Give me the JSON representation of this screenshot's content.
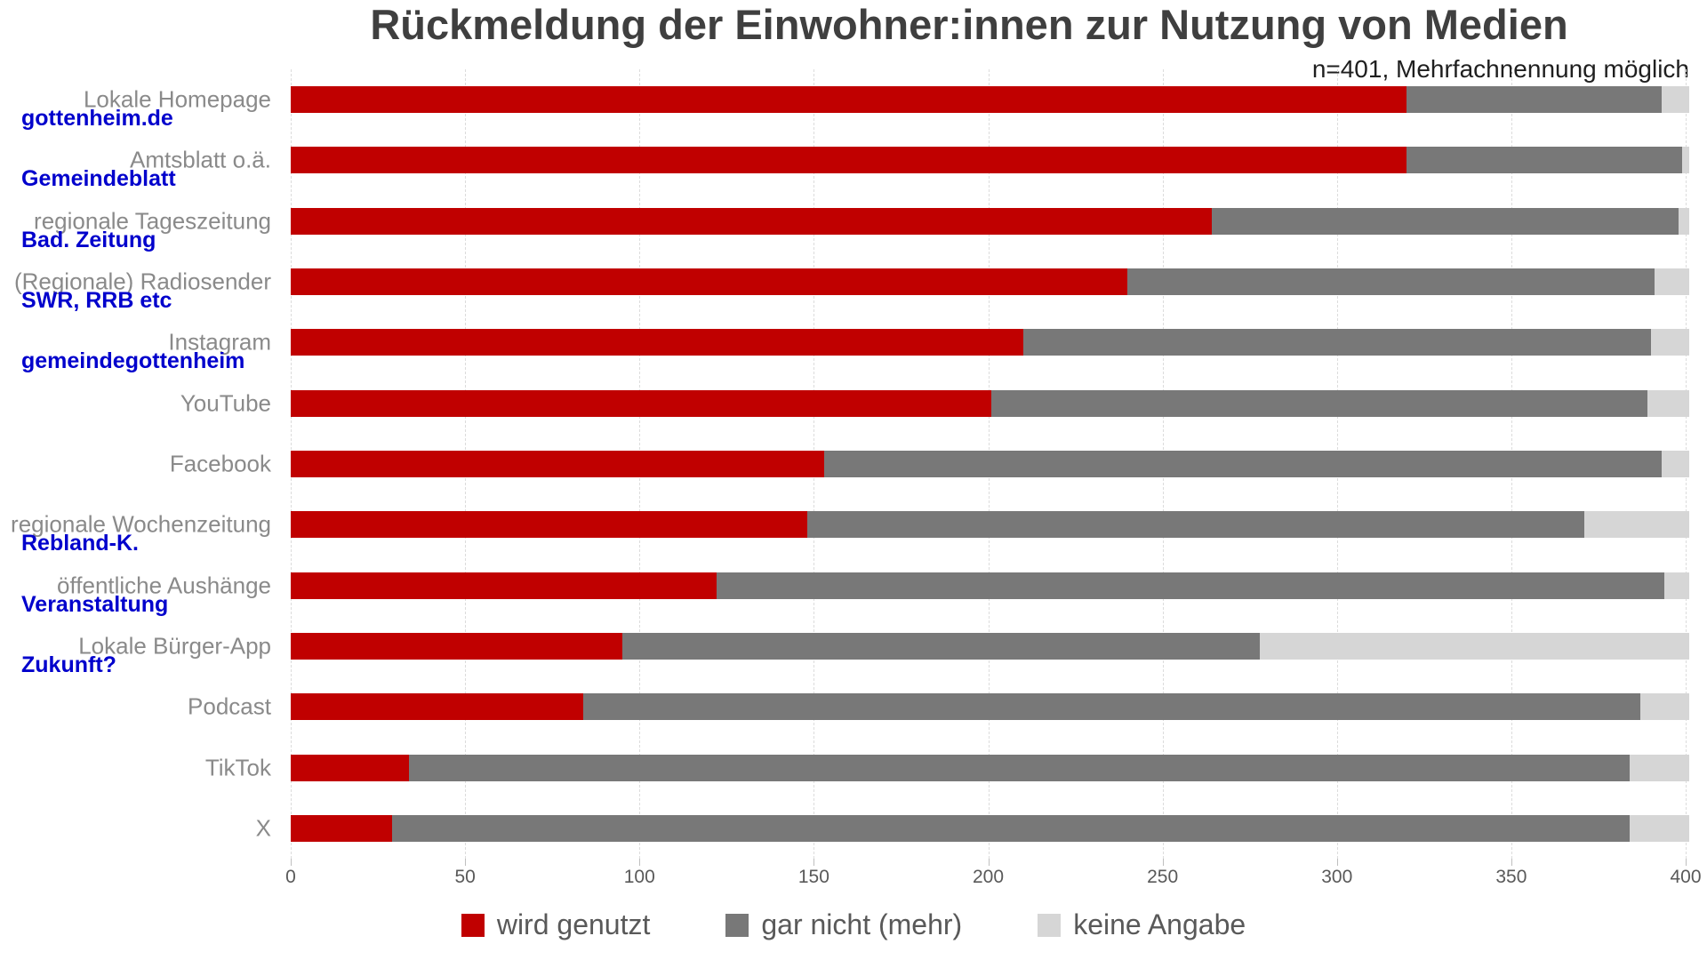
{
  "chart": {
    "title": "Rückmeldung der Einwohner:innen zur Nutzung von Medien",
    "subtitle": "n=401, Mehrfachnennung möglich"
  },
  "chart_data": {
    "type": "bar",
    "orientation": "horizontal",
    "stacked": true,
    "title": "Rückmeldung der Einwohner:innen zur Nutzung von Medien",
    "subtitle": "n=401, Mehrfachnennung möglich",
    "n_total": 401,
    "xlim": [
      0,
      400
    ],
    "x_ticks": [
      0,
      50,
      100,
      150,
      200,
      250,
      300,
      350,
      400
    ],
    "grid": "dashed-vertical",
    "legend_position": "bottom",
    "categories": [
      "Lokale Homepage",
      "Amtsblatt o.ä.",
      "regionale Tageszeitung",
      "(Regionale) Radiosender",
      "Instagram",
      "YouTube",
      "Facebook",
      "regionale Wochenzeitung",
      "öffentliche Aushänge",
      "Lokale Bürger-App",
      "Podcast",
      "TikTok",
      "X"
    ],
    "annotations": [
      "gottenheim.de",
      "Gemeindeblatt",
      "Bad. Zeitung",
      "SWR, RRB etc",
      "gemeindegottenheim",
      "",
      "",
      "Rebland-K.",
      "Veranstaltung",
      "Zukunft?",
      "",
      "",
      ""
    ],
    "series": [
      {
        "name": "wird genutzt",
        "color": "#c00000",
        "values": [
          320,
          320,
          264,
          240,
          210,
          201,
          153,
          148,
          122,
          95,
          84,
          34,
          29
        ]
      },
      {
        "name": "gar nicht (mehr)",
        "color": "#787878",
        "values": [
          73,
          79,
          134,
          151,
          180,
          188,
          240,
          223,
          272,
          183,
          303,
          350,
          355
        ]
      },
      {
        "name": "keine Angabe",
        "color": "#d6d6d6",
        "values": [
          8,
          2,
          3,
          10,
          11,
          12,
          8,
          30,
          7,
          123,
          14,
          17,
          17
        ]
      }
    ]
  },
  "colors": {
    "title": "#3f3f3f",
    "category_label": "#8a8a8a",
    "annotation": "#0000cc",
    "tick_label": "#595959",
    "legend_label": "#595959",
    "background": "#ffffff"
  }
}
